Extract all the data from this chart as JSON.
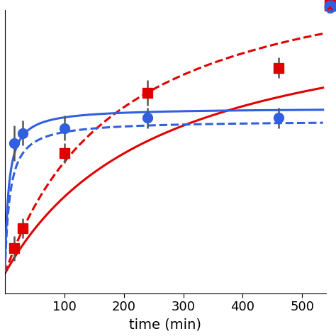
{
  "red_x": [
    15,
    30,
    100,
    240,
    460
  ],
  "red_y": [
    0.1,
    0.18,
    0.48,
    0.72,
    0.82
  ],
  "red_yerr": [
    0.05,
    0.04,
    0.04,
    0.05,
    0.04
  ],
  "blue_x": [
    15,
    30,
    100,
    240,
    460
  ],
  "blue_y": [
    0.52,
    0.56,
    0.58,
    0.62,
    0.62
  ],
  "blue_yerr": [
    0.07,
    0.05,
    0.05,
    0.04,
    0.04
  ],
  "red_solid_qe": 1.1,
  "red_solid_k": 0.0035,
  "red_dashed_qe": 1.3,
  "red_dashed_k": 0.004,
  "blue_solid_qe": 0.66,
  "blue_solid_k": 0.25,
  "blue_dashed_qe": 0.61,
  "blue_dashed_k": 0.2,
  "red_color": "#e00000",
  "blue_color": "#3060e0",
  "xlabel": "time (min)",
  "xlim": [
    0,
    540
  ],
  "ylim_min": -0.08,
  "ylim_max": 1.05,
  "xticks": [
    100,
    200,
    300,
    400,
    500
  ],
  "marker_size": 10,
  "line_width": 2.2
}
